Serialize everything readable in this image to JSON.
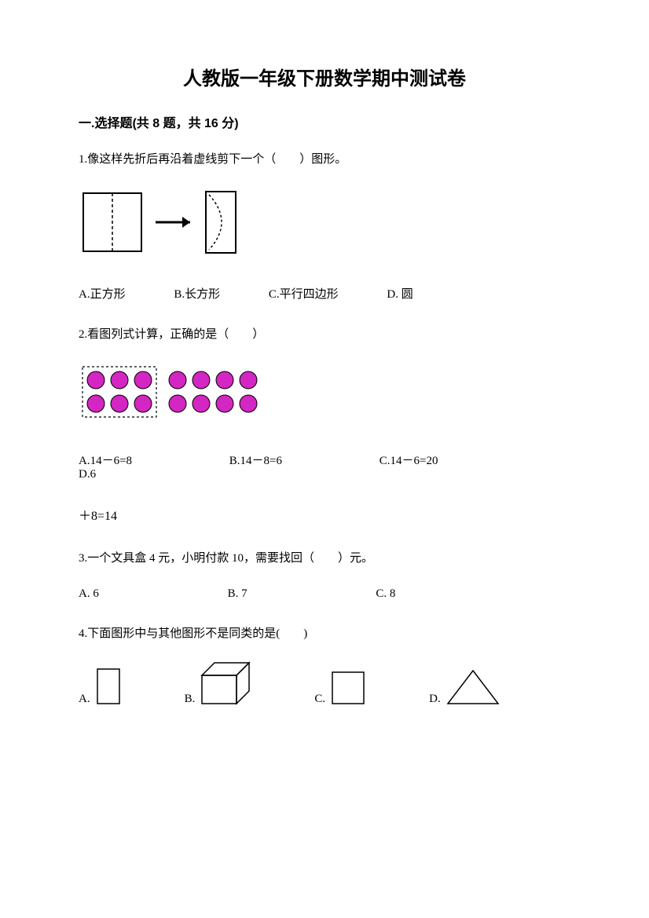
{
  "title": "人教版一年级下册数学期中测试卷",
  "section1": {
    "header": "一.选择题(共 8 题，共 16 分)"
  },
  "q1": {
    "text": "1.像这样先折后再沿着虚线剪下一个（　　）图形。",
    "diagram": {
      "square_stroke": "#000000",
      "square_size": 74,
      "arrow_color": "#000000",
      "half_rect_w": 38,
      "half_rect_h": 78
    },
    "optA": "A.正方形",
    "optB": "B.长方形",
    "optC": "C.平行四边形",
    "optD": "D. 圆"
  },
  "q2": {
    "text": "2.看图列式计算，正确的是（　　）",
    "diagram": {
      "circle_fill": "#d326c2",
      "circle_stroke": "#000000",
      "circle_r": 11,
      "gap": 30,
      "box_stroke": "#000000",
      "box_dash": "3,3",
      "left_cols": 3,
      "right_cols": 4,
      "rows": 2
    },
    "optA": "A.14－6=8",
    "optB": "B.14－8=6",
    "optC": "C.14－6=20",
    "optD": "D.6",
    "optD_line2": "＋8=14"
  },
  "q3": {
    "text": "3.一个文具盒 4 元，小明付款 10，需要找回（　　）元。",
    "optA": "A. 6",
    "optB": "B. 7",
    "optC": "C. 8"
  },
  "q4": {
    "text": "4.下面图形中与其他图形不是同类的是(　　)",
    "optA": "A.",
    "optB": "B.",
    "optC": "C.",
    "optD": "D.",
    "shapes": {
      "stroke": "#000000",
      "rect_w": 28,
      "rect_h": 44,
      "cuboid_w": 44,
      "cuboid_h": 52,
      "cuboid_depth": 16,
      "square_s": 40,
      "tri_w": 64,
      "tri_h": 42
    }
  }
}
